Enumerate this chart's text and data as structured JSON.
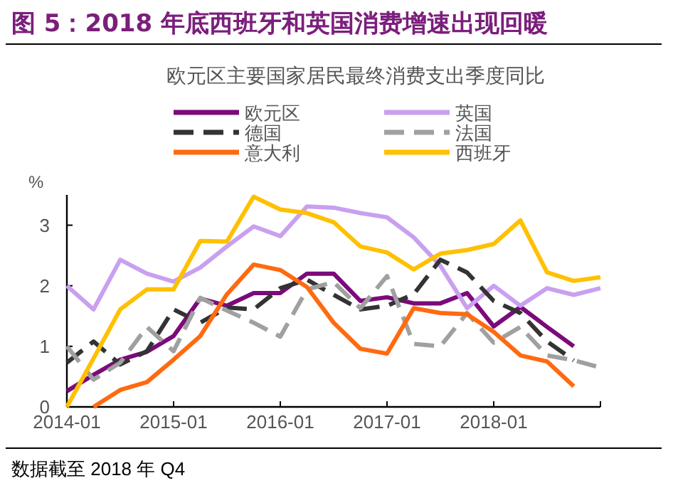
{
  "chart_data": {
    "type": "line",
    "title": "图 5：2018 年底西班牙和英国消费增速出现回暖",
    "subtitle": "欧元区主要国家居民最终消费支出季度同比",
    "ylabel": "%",
    "annotations": [
      "数据截至 2018 年 Q4"
    ],
    "x": [
      "2014-01",
      "2014-04",
      "2014-07",
      "2014-10",
      "2015-01",
      "2015-04",
      "2015-07",
      "2015-10",
      "2016-01",
      "2016-04",
      "2016-07",
      "2016-10",
      "2017-01",
      "2017-04",
      "2017-07",
      "2017-10",
      "2018-01",
      "2018-04",
      "2018-07",
      "2018-10"
    ],
    "xlim": [
      "2014-01",
      "2019-01"
    ],
    "xticks": [
      "2014-01",
      "2015-01",
      "2016-01",
      "2017-01",
      "2018-01",
      {
        "value": "2019-01",
        "label": null
      }
    ],
    "ylim": [
      0,
      3.5
    ],
    "yticks": [
      0,
      1,
      2,
      3
    ],
    "legend": "top",
    "grid": false,
    "series": [
      {
        "name": "欧元区",
        "color": "#7b0a7b",
        "line_style": "solid",
        "values": [
          0.26,
          0.53,
          0.78,
          0.91,
          1.17,
          1.79,
          1.67,
          1.88,
          1.88,
          2.2,
          2.2,
          1.75,
          1.81,
          1.71,
          1.71,
          1.88,
          1.33,
          1.65,
          1.32,
          1.0
        ]
      },
      {
        "name": "英国",
        "color": "#c9a0f0",
        "line_style": "solid",
        "x": [
          "2014-01",
          "2014-04",
          "2014-07",
          "2014-10",
          "2015-01",
          "2015-04",
          "2015-07",
          "2015-10",
          "2016-01",
          "2016-04",
          "2016-07",
          "2016-10",
          "2017-01",
          "2017-04",
          "2017-07",
          "2017-10",
          "2018-01",
          "2018-04",
          "2018-07",
          "2018-10",
          "2019-01"
        ],
        "values": [
          2.0,
          1.61,
          2.43,
          2.2,
          2.07,
          2.3,
          2.65,
          2.98,
          2.82,
          3.31,
          3.29,
          3.2,
          3.13,
          2.8,
          2.33,
          1.63,
          2.0,
          1.67,
          1.96,
          1.85,
          1.96
        ]
      },
      {
        "name": "德国",
        "color": "#333333",
        "line_style": "dashed",
        "values": [
          0.73,
          1.08,
          0.7,
          0.92,
          1.61,
          1.39,
          1.64,
          1.61,
          1.96,
          2.1,
          1.85,
          1.61,
          1.67,
          1.86,
          2.43,
          2.22,
          1.75,
          1.55,
          1.08,
          0.77
        ]
      },
      {
        "name": "法国",
        "color": "#a0a0a0",
        "line_style": "dashed",
        "x": [
          "2014-01",
          "2014-04",
          "2014-07",
          "2014-10",
          "2015-01",
          "2015-04",
          "2015-07",
          "2015-10",
          "2016-01",
          "2016-04",
          "2016-07",
          "2016-10",
          "2017-01",
          "2017-04",
          "2017-07",
          "2017-10",
          "2018-01",
          "2018-04",
          "2018-07",
          "2018-10",
          "2019-01"
        ],
        "values": [
          1.0,
          0.45,
          0.73,
          1.32,
          0.92,
          1.8,
          1.59,
          1.39,
          1.16,
          1.94,
          2.06,
          1.63,
          2.16,
          1.04,
          1.0,
          1.55,
          1.06,
          1.32,
          0.85,
          0.77,
          0.65
        ]
      },
      {
        "name": "意大利",
        "color": "#ff6a10",
        "line_style": "solid",
        "values": [
          null,
          0.0,
          0.28,
          0.41,
          0.78,
          1.17,
          1.86,
          2.35,
          2.26,
          1.98,
          1.39,
          0.96,
          0.88,
          1.63,
          1.55,
          1.53,
          1.24,
          0.85,
          0.75,
          0.34
        ]
      },
      {
        "name": "西班牙",
        "color": "#ffc000",
        "line_style": "solid",
        "x": [
          "2014-01",
          "2014-04",
          "2014-07",
          "2014-10",
          "2015-01",
          "2015-04",
          "2015-07",
          "2015-10",
          "2016-01",
          "2016-04",
          "2016-07",
          "2016-10",
          "2017-01",
          "2017-04",
          "2017-07",
          "2017-10",
          "2018-01",
          "2018-04",
          "2018-07",
          "2018-10",
          "2019-01"
        ],
        "values": [
          0.0,
          0.8,
          1.61,
          1.94,
          1.94,
          2.74,
          2.73,
          3.47,
          3.26,
          3.2,
          3.05,
          2.65,
          2.55,
          2.27,
          2.53,
          2.59,
          2.69,
          3.08,
          2.22,
          2.08,
          2.14
        ]
      }
    ]
  }
}
